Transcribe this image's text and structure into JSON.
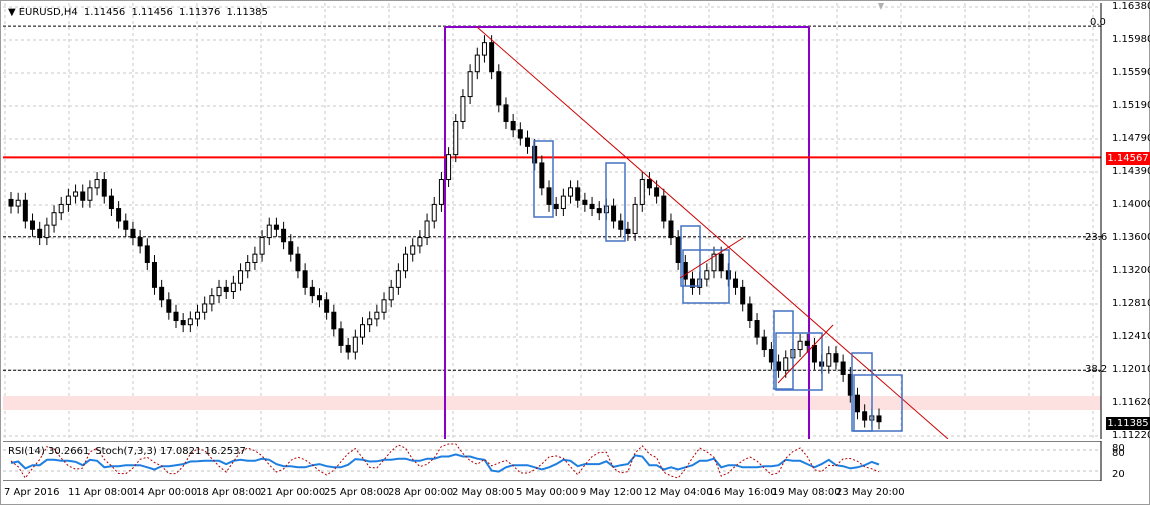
{
  "symbol": {
    "name": "EURUSD,H4",
    "open": "1.11456",
    "high": "1.11456",
    "low": "1.11376",
    "close": "1.11385"
  },
  "price_scale": [
    "1.16380",
    "1.15980",
    "1.15590",
    "1.15190",
    "1.14790",
    "1.14390",
    "1.14000",
    "1.13600",
    "1.13200",
    "1.12810",
    "1.12410",
    "1.12010",
    "1.11620",
    "1.11220"
  ],
  "price_tags": {
    "hline": "1.14567",
    "current": "1.11385"
  },
  "fib_levels": {
    "level_0": "0.0",
    "level_23": "23.6",
    "level_38": "38.2"
  },
  "indicators": {
    "rsi": "RSI(14) 30.2661",
    "stoch": "Stoch(7,3,3) 17.0821 16.2537"
  },
  "sub_scale": {
    "top": "80",
    "mid": "80",
    "bottom": "20"
  },
  "time_axis": [
    "7 Apr 2016",
    "11 Apr 08:00",
    "14 Apr 00:00",
    "18 Apr 08:00",
    "21 Apr 00:00",
    "25 Apr 08:00",
    "28 Apr 00:00",
    "2 May 08:00",
    "5 May 00:00",
    "9 May 12:00",
    "12 May 04:00",
    "16 May 16:00",
    "19 May 08:00",
    "23 May 20:00"
  ],
  "colors": {
    "hline": "#ff0000",
    "vline": "#8b00c8",
    "trend": "#cc0000",
    "box": "#4472c4",
    "rsi": "#1e7fe0",
    "tag_red": "#ff0000",
    "tag_dark": "#000000",
    "zone": "#fde1e1"
  },
  "chart_data": {
    "type": "candlestick",
    "symbol": "EURUSD",
    "timeframe": "H4",
    "ylim": [
      1.1122,
      1.165
    ],
    "horizontal_line": 1.14567,
    "fib_levels": [
      {
        "label": "0.0",
        "price": 1.1615
      },
      {
        "label": "23.6",
        "price": 1.1361
      },
      {
        "label": "38.2",
        "price": 1.12
      }
    ],
    "closes": [
      1.1398,
      1.1405,
      1.138,
      1.137,
      1.136,
      1.1375,
      1.139,
      1.14,
      1.141,
      1.1415,
      1.1405,
      1.142,
      1.143,
      1.141,
      1.1395,
      1.138,
      1.137,
      1.136,
      1.135,
      1.133,
      1.13,
      1.1285,
      1.127,
      1.126,
      1.1255,
      1.1262,
      1.127,
      1.128,
      1.129,
      1.13,
      1.1295,
      1.1305,
      1.132,
      1.133,
      1.134,
      1.136,
      1.1375,
      1.137,
      1.1355,
      1.134,
      1.132,
      1.13,
      1.129,
      1.1285,
      1.127,
      1.125,
      1.123,
      1.1222,
      1.124,
      1.1255,
      1.1262,
      1.127,
      1.1285,
      1.13,
      1.132,
      1.134,
      1.135,
      1.136,
      1.138,
      1.14,
      1.143,
      1.146,
      1.15,
      1.153,
      1.156,
      1.158,
      1.1595,
      1.156,
      1.152,
      1.15,
      1.149,
      1.148,
      1.147,
      1.145,
      1.142,
      1.14,
      1.1395,
      1.141,
      1.142,
      1.1405,
      1.14,
      1.1395,
      1.139,
      1.1398,
      1.138,
      1.137,
      1.1365,
      1.14,
      1.143,
      1.142,
      1.141,
      1.138,
      1.136,
      1.133,
      1.131,
      1.13,
      1.131,
      1.132,
      1.134,
      1.132,
      1.131,
      1.13,
      1.128,
      1.126,
      1.124,
      1.1225,
      1.121,
      1.12,
      1.1215,
      1.1225,
      1.1235,
      1.123,
      1.121,
      1.1205,
      1.122,
      1.121,
      1.1195,
      1.117,
      1.115,
      1.114,
      1.1145,
      1.1138
    ]
  }
}
